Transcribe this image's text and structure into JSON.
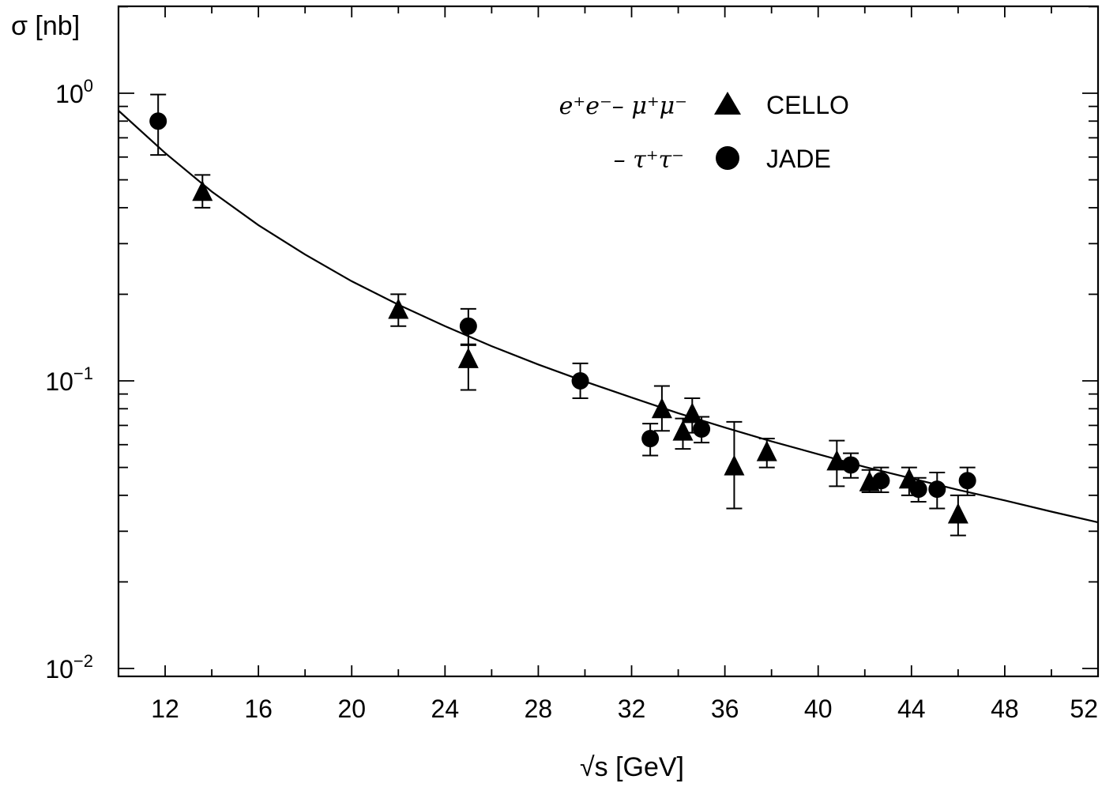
{
  "chart_data": {
    "type": "scatter",
    "y_scale": "log",
    "ylabel": "σ [nb]",
    "xlabel": "√s [GeV]",
    "xlim": [
      10,
      52
    ],
    "ylim": [
      0.01,
      1.8
    ],
    "x_ticks": [
      12,
      16,
      20,
      24,
      28,
      32,
      36,
      40,
      44,
      48,
      52
    ],
    "y_ticks": [
      {
        "value": 1,
        "base": "10",
        "exp": "0"
      },
      {
        "value": 0.1,
        "base": "10",
        "exp": "−1"
      },
      {
        "value": 0.01,
        "base": "10",
        "exp": "−2"
      }
    ],
    "grid": false,
    "legend": {
      "placement": "top-right",
      "process_1": "e⁺e⁻– μ⁺μ⁻",
      "process_2": "– τ⁺τ⁻",
      "entries": [
        "CELLO",
        "JADE"
      ]
    },
    "curve": {
      "x": [
        10,
        12,
        14,
        16,
        18,
        20,
        22,
        24,
        26,
        28,
        30,
        32,
        34,
        36,
        38,
        40,
        42,
        44,
        46,
        48,
        50,
        52
      ],
      "y": [
        0.87,
        0.62,
        0.455,
        0.348,
        0.275,
        0.222,
        0.184,
        0.155,
        0.132,
        0.114,
        0.0995,
        0.0875,
        0.0772,
        0.0688,
        0.0616,
        0.0556,
        0.0502,
        0.0458,
        0.0418,
        0.0384,
        0.0351,
        0.0322
      ]
    },
    "series": [
      {
        "name": "CELLO",
        "marker": "triangle",
        "points": [
          {
            "x": 13.6,
            "y": 0.45,
            "ylo": 0.4,
            "yhi": 0.52
          },
          {
            "x": 22.0,
            "y": 0.175,
            "ylo": 0.155,
            "yhi": 0.2
          },
          {
            "x": 25.0,
            "y": 0.118,
            "ylo": 0.093,
            "yhi": 0.133
          },
          {
            "x": 33.3,
            "y": 0.079,
            "ylo": 0.067,
            "yhi": 0.096
          },
          {
            "x": 34.2,
            "y": 0.066,
            "ylo": 0.058,
            "yhi": 0.074
          },
          {
            "x": 34.6,
            "y": 0.076,
            "ylo": 0.066,
            "yhi": 0.087
          },
          {
            "x": 36.4,
            "y": 0.05,
            "ylo": 0.036,
            "yhi": 0.072
          },
          {
            "x": 37.8,
            "y": 0.056,
            "ylo": 0.05,
            "yhi": 0.063
          },
          {
            "x": 40.8,
            "y": 0.052,
            "ylo": 0.043,
            "yhi": 0.062
          },
          {
            "x": 42.2,
            "y": 0.044,
            "ylo": 0.041,
            "yhi": 0.049
          },
          {
            "x": 43.9,
            "y": 0.045,
            "ylo": 0.04,
            "yhi": 0.05
          },
          {
            "x": 46.0,
            "y": 0.034,
            "ylo": 0.029,
            "yhi": 0.04
          }
        ]
      },
      {
        "name": "JADE",
        "marker": "circle",
        "points": [
          {
            "x": 11.7,
            "y": 0.8,
            "ylo": 0.61,
            "yhi": 0.99
          },
          {
            "x": 25.0,
            "y": 0.155,
            "ylo": 0.134,
            "yhi": 0.178
          },
          {
            "x": 29.8,
            "y": 0.1,
            "ylo": 0.087,
            "yhi": 0.115
          },
          {
            "x": 32.8,
            "y": 0.063,
            "ylo": 0.055,
            "yhi": 0.071
          },
          {
            "x": 35.0,
            "y": 0.068,
            "ylo": 0.061,
            "yhi": 0.075
          },
          {
            "x": 41.4,
            "y": 0.051,
            "ylo": 0.046,
            "yhi": 0.056
          },
          {
            "x": 42.7,
            "y": 0.045,
            "ylo": 0.041,
            "yhi": 0.05
          },
          {
            "x": 44.3,
            "y": 0.042,
            "ylo": 0.038,
            "yhi": 0.046
          },
          {
            "x": 45.1,
            "y": 0.042,
            "ylo": 0.036,
            "yhi": 0.048
          },
          {
            "x": 46.4,
            "y": 0.045,
            "ylo": 0.04,
            "yhi": 0.05
          }
        ]
      }
    ]
  }
}
